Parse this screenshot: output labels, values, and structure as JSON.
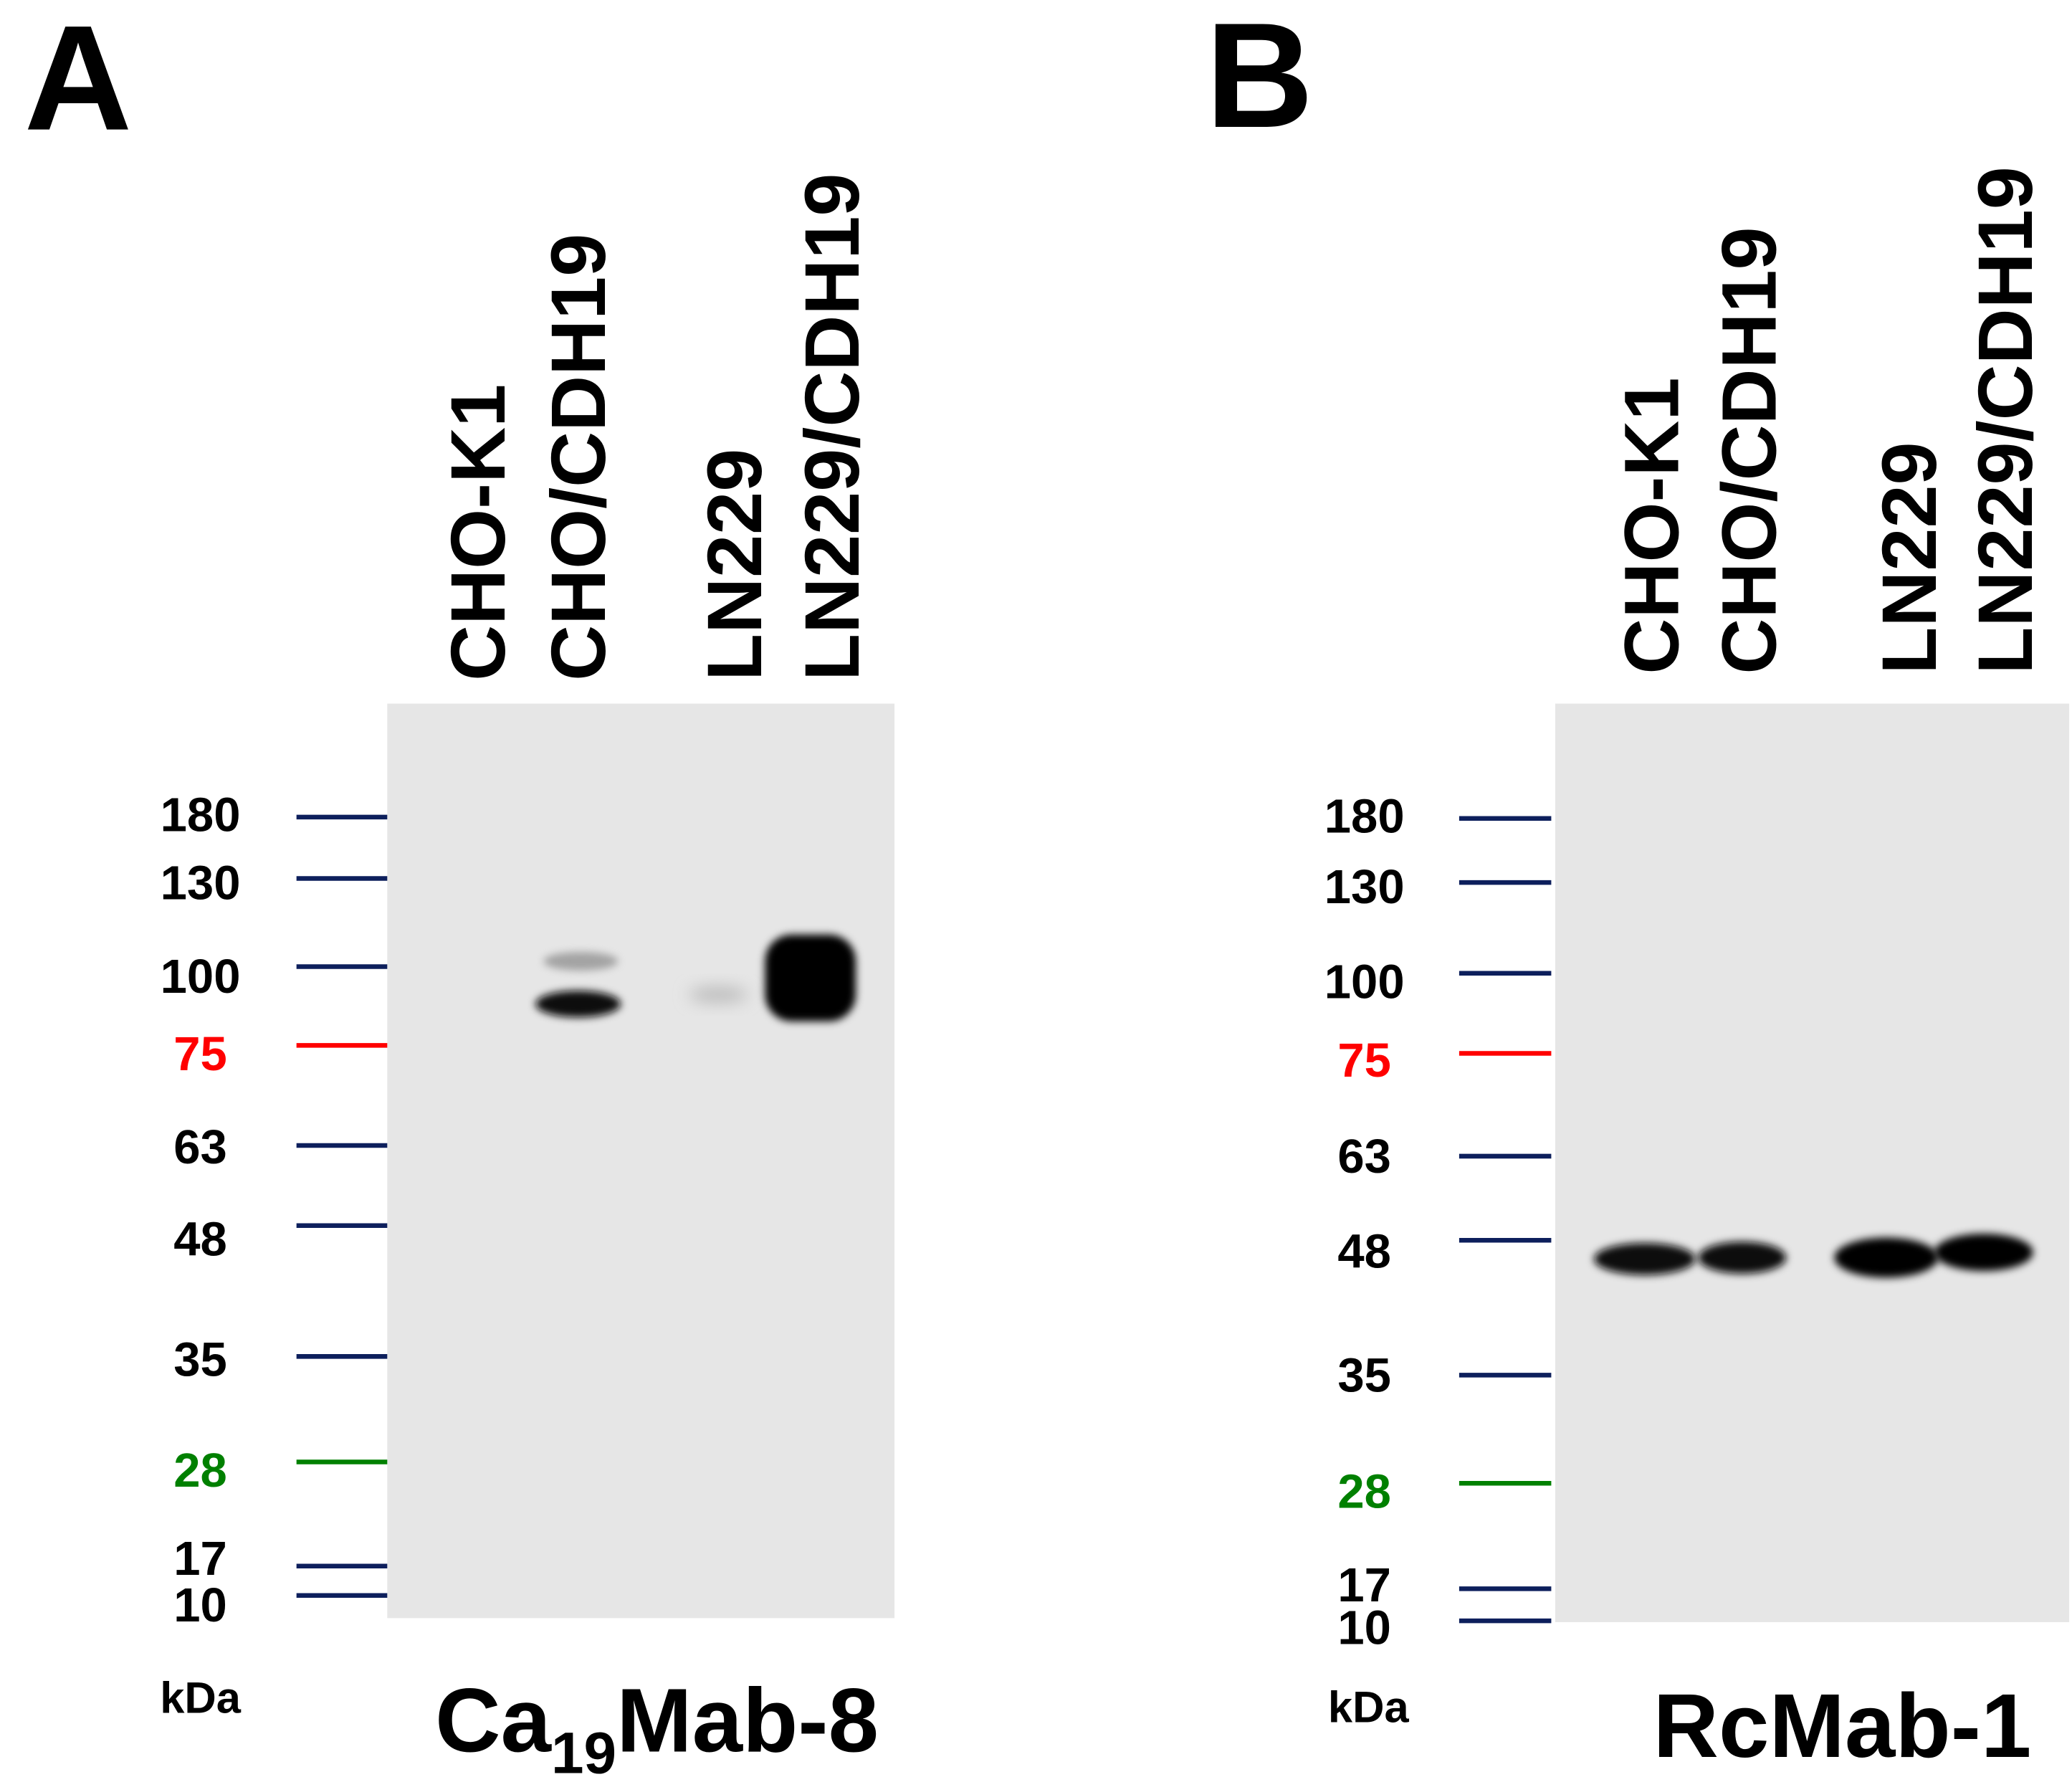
{
  "panels": [
    {
      "label": "A",
      "lanes": [
        "CHO-K1",
        "CHO/CDH19",
        "LN229",
        "LN229/CDH19"
      ],
      "markers": [
        {
          "label": "180",
          "color": "#0d1f5c"
        },
        {
          "label": "130",
          "color": "#0d1f5c"
        },
        {
          "label": "100",
          "color": "#0d1f5c"
        },
        {
          "label": "75",
          "color": "#ff0000"
        },
        {
          "label": "63",
          "color": "#0d1f5c"
        },
        {
          "label": "48",
          "color": "#0d1f5c"
        },
        {
          "label": "35",
          "color": "#0d1f5c"
        },
        {
          "label": "28",
          "color": "#008000"
        },
        {
          "label": "17",
          "color": "#0d1f5c"
        },
        {
          "label": "10",
          "color": "#0d1f5c"
        }
      ],
      "unit": "kDa",
      "antibody": [
        {
          "text": "Ca"
        },
        {
          "text": "19",
          "sub": true
        },
        {
          "text": "Mab-8"
        }
      ]
    },
    {
      "label": "B",
      "lanes": [
        "CHO-K1",
        "CHO/CDH19",
        "LN229",
        "LN229/CDH19"
      ],
      "markers": [
        {
          "label": "180",
          "color": "#0d1f5c"
        },
        {
          "label": "130",
          "color": "#0d1f5c"
        },
        {
          "label": "100",
          "color": "#0d1f5c"
        },
        {
          "label": "75",
          "color": "#ff0000"
        },
        {
          "label": "63",
          "color": "#0d1f5c"
        },
        {
          "label": "48",
          "color": "#0d1f5c"
        },
        {
          "label": "35",
          "color": "#0d1f5c"
        },
        {
          "label": "28",
          "color": "#008000"
        },
        {
          "label": "17",
          "color": "#0d1f5c"
        },
        {
          "label": "10",
          "color": "#0d1f5c"
        }
      ],
      "unit": "kDa",
      "antibody": [
        {
          "text": "RcMab-1"
        }
      ]
    }
  ]
}
